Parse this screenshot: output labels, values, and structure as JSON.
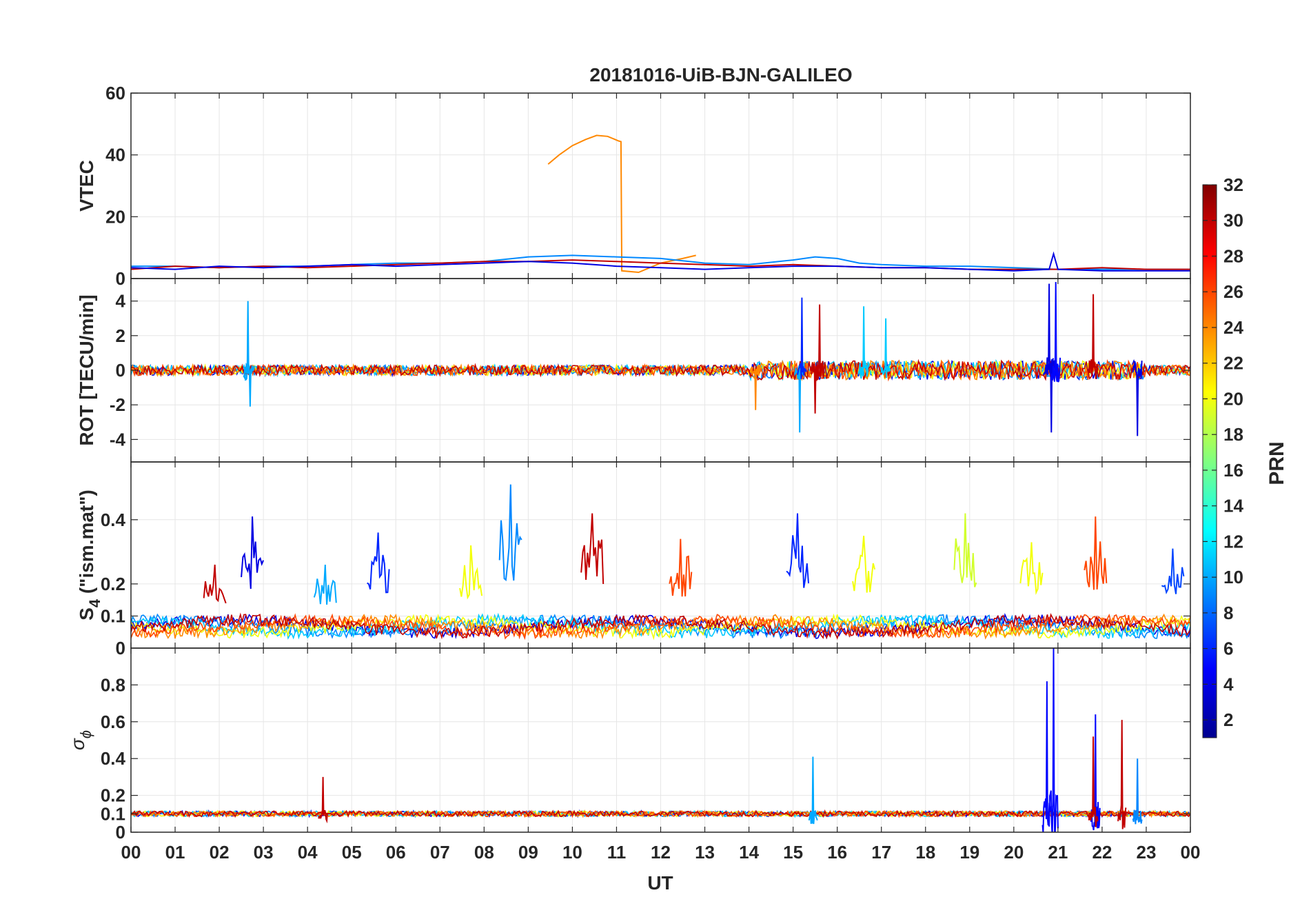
{
  "title": "20181016-UiB-BJN-GALILEO",
  "x_axis": {
    "label": "UT",
    "ticks": [
      "00",
      "01",
      "02",
      "03",
      "04",
      "05",
      "06",
      "07",
      "08",
      "09",
      "10",
      "11",
      "12",
      "13",
      "14",
      "15",
      "16",
      "17",
      "18",
      "19",
      "20",
      "21",
      "22",
      "23",
      "00"
    ]
  },
  "colorbar": {
    "label": "PRN",
    "ticks": [
      "2",
      "4",
      "6",
      "8",
      "10",
      "12",
      "14",
      "16",
      "18",
      "20",
      "22",
      "24",
      "26",
      "28",
      "30",
      "32"
    ],
    "range": [
      1,
      32
    ],
    "colormap": "jet"
  },
  "panels": [
    {
      "id": "vtec",
      "ylabel": "VTEC",
      "yticks": [
        "0",
        "20",
        "40",
        "60"
      ]
    },
    {
      "id": "rot",
      "ylabel": "ROT [TECU/min]",
      "yticks": [
        "-4",
        "-2",
        "0",
        "2",
        "4"
      ]
    },
    {
      "id": "s4",
      "ylabel_main": "S",
      "ylabel_sub": "4",
      "ylabel_rest": " (\"ism.mat\")",
      "yticks": [
        "0.1",
        "0.2",
        "0.4"
      ],
      "extra_zero": "0"
    },
    {
      "id": "sigma",
      "ylabel_main": "σ",
      "ylabel_sub": "ϕ",
      "yticks": [
        "0",
        "0.1",
        "0.2",
        "0.4",
        "0.6",
        "0.8"
      ]
    }
  ],
  "chart_data": [
    {
      "type": "line",
      "title": "20181016-UiB-BJN-GALILEO",
      "ylabel": "VTEC",
      "xlim": [
        0,
        24
      ],
      "ylim": [
        0,
        60
      ],
      "grid": true,
      "series": [
        {
          "prn": 24,
          "x": [
            9.45,
            9.7,
            10.0,
            10.3,
            10.55,
            10.8,
            11.05,
            11.1,
            11.12,
            11.5,
            12.0,
            12.5,
            12.8
          ],
          "y": [
            37,
            40,
            43,
            45,
            46.3,
            46,
            44.5,
            44.3,
            2.5,
            2,
            5,
            6.5,
            7.5
          ]
        },
        {
          "prn": 9,
          "x": [
            0,
            1,
            2,
            3,
            4,
            5,
            6,
            7,
            8,
            9,
            10,
            11,
            12,
            13,
            14,
            15,
            15.5,
            16,
            16.5,
            17,
            18,
            19,
            20,
            21,
            22,
            23,
            24
          ],
          "y": [
            4,
            4,
            3.5,
            4,
            4,
            4.5,
            5,
            5,
            5.5,
            7,
            7.5,
            7,
            6.5,
            5,
            4.5,
            6,
            7,
            6.5,
            5,
            4.5,
            4,
            4,
            3.5,
            3,
            3,
            3,
            3
          ]
        },
        {
          "prn": 30,
          "x": [
            0,
            1,
            2,
            3,
            4,
            5,
            6,
            7,
            8,
            9,
            10,
            11,
            12,
            13,
            14,
            15,
            16,
            17,
            18,
            19,
            20,
            21,
            22,
            23,
            24
          ],
          "y": [
            3,
            4,
            3.5,
            4,
            3.5,
            4,
            4.5,
            5,
            5.5,
            5.5,
            6,
            5.5,
            5,
            4.5,
            4,
            4.5,
            4,
            3.5,
            3.5,
            3,
            3,
            3,
            3.5,
            3,
            3
          ]
        },
        {
          "prn": 4,
          "x": [
            0,
            1,
            2,
            3,
            4,
            5,
            6,
            7,
            8,
            9,
            10,
            11,
            12,
            13,
            14,
            15,
            16,
            17,
            18,
            19,
            20,
            20.8,
            20.9,
            21,
            22,
            23,
            24
          ],
          "y": [
            3.5,
            3,
            4,
            3.5,
            4,
            4.5,
            4,
            4.5,
            5,
            5.5,
            5,
            4,
            3.5,
            3,
            3.5,
            4,
            4,
            3.5,
            3.5,
            3,
            2.5,
            3,
            8,
            3,
            2.5,
            2.5,
            2.5
          ]
        }
      ]
    },
    {
      "type": "line",
      "ylabel": "ROT [TECU/min]",
      "xlim": [
        0,
        24
      ],
      "ylim": [
        -5.3,
        5.3
      ],
      "grid": true,
      "events": [
        {
          "prn": 10,
          "t": 2.65,
          "peak": 4.0
        },
        {
          "prn": 10,
          "t": 2.7,
          "peak": -2.1
        },
        {
          "prn": 24,
          "t": 14.15,
          "peak": -2.3
        },
        {
          "prn": 10,
          "t": 15.15,
          "peak": -3.6
        },
        {
          "prn": 6,
          "t": 15.2,
          "peak": 4.2
        },
        {
          "prn": 30,
          "t": 15.5,
          "peak": -2.5
        },
        {
          "prn": 30,
          "t": 15.6,
          "peak": 3.8
        },
        {
          "prn": 11,
          "t": 16.6,
          "peak": 3.7
        },
        {
          "prn": 11,
          "t": 17.1,
          "peak": 3.0
        },
        {
          "prn": 4,
          "t": 20.8,
          "peak": 5.0
        },
        {
          "prn": 4,
          "t": 20.85,
          "peak": -3.6
        },
        {
          "prn": 5,
          "t": 20.95,
          "peak": 5.1
        },
        {
          "prn": 30,
          "t": 21.8,
          "peak": 4.4
        },
        {
          "prn": 4,
          "t": 22.8,
          "peak": -3.8
        }
      ]
    },
    {
      "type": "line",
      "ylabel": "S4 (\"ism.mat\")",
      "xlim": [
        0,
        24
      ],
      "ylim": [
        0,
        0.58
      ],
      "grid": true,
      "events": [
        {
          "prn": 30,
          "t": 1.9,
          "peak": 0.26
        },
        {
          "prn": 4,
          "t": 2.75,
          "peak": 0.41
        },
        {
          "prn": 10,
          "t": 4.4,
          "peak": 0.26
        },
        {
          "prn": 6,
          "t": 5.6,
          "peak": 0.36
        },
        {
          "prn": 20,
          "t": 7.7,
          "peak": 0.32
        },
        {
          "prn": 9,
          "t": 8.6,
          "peak": 0.51
        },
        {
          "prn": 30,
          "t": 10.45,
          "peak": 0.42
        },
        {
          "prn": 26,
          "t": 12.45,
          "peak": 0.34
        },
        {
          "prn": 6,
          "t": 15.1,
          "peak": 0.42
        },
        {
          "prn": 20,
          "t": 16.6,
          "peak": 0.35
        },
        {
          "prn": 19,
          "t": 18.9,
          "peak": 0.42
        },
        {
          "prn": 20,
          "t": 20.4,
          "peak": 0.33
        },
        {
          "prn": 26,
          "t": 21.85,
          "peak": 0.41
        },
        {
          "prn": 7,
          "t": 23.6,
          "peak": 0.31
        }
      ]
    },
    {
      "type": "line",
      "ylabel": "σϕ",
      "xlim": [
        0,
        24
      ],
      "ylim": [
        0,
        1
      ],
      "grid": true,
      "events": [
        {
          "prn": 30,
          "t": 4.35,
          "peak": 0.3
        },
        {
          "prn": 10,
          "t": 15.45,
          "peak": 0.41
        },
        {
          "prn": 5,
          "t": 20.75,
          "peak": 0.82
        },
        {
          "prn": 5,
          "t": 20.9,
          "peak": 1.0
        },
        {
          "prn": 5,
          "t": 21.85,
          "peak": 0.64
        },
        {
          "prn": 30,
          "t": 21.8,
          "peak": 0.52
        },
        {
          "prn": 30,
          "t": 22.45,
          "peak": 0.61
        },
        {
          "prn": 9,
          "t": 22.8,
          "peak": 0.4
        }
      ]
    }
  ]
}
